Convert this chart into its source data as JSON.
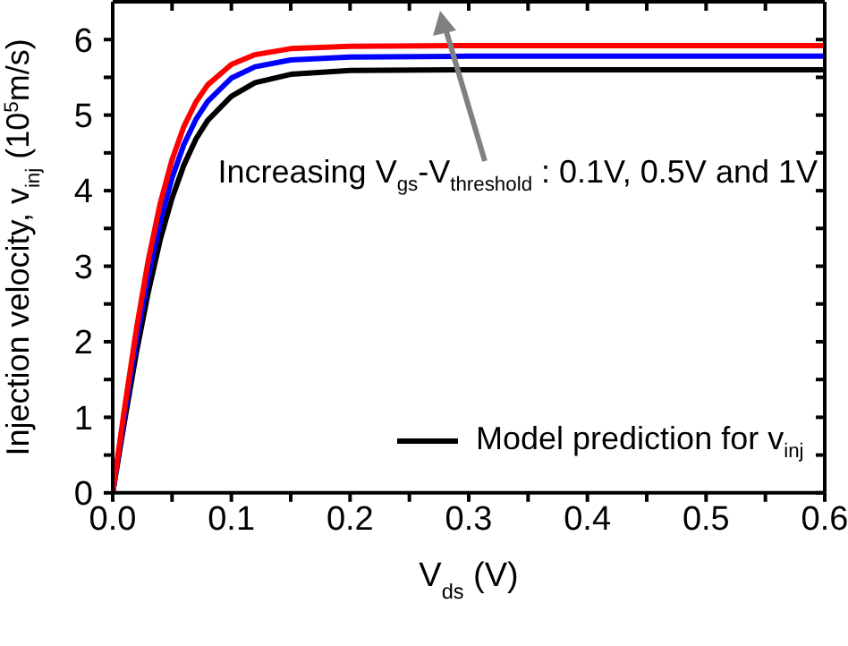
{
  "chart_data": {
    "type": "line",
    "xlabel": "V$_{ds}$ (V)",
    "ylabel": "Injection velocity, v$_{inj}$ (10$^{5}$m/s)",
    "x": [
      0,
      0.01,
      0.02,
      0.03,
      0.04,
      0.05,
      0.06,
      0.07,
      0.08,
      0.1,
      0.12,
      0.15,
      0.2,
      0.3,
      0.4,
      0.5,
      0.6
    ],
    "series": [
      {
        "name": "Model prediction for v$_{inj}$",
        "color": "#000000",
        "values": [
          0,
          0.95,
          1.86,
          2.66,
          3.35,
          3.9,
          4.34,
          4.68,
          4.93,
          5.25,
          5.43,
          5.54,
          5.59,
          5.6,
          5.6,
          5.6,
          5.6
        ]
      },
      {
        "color": "#0000ff",
        "values": [
          0,
          1.04,
          2.02,
          2.87,
          3.59,
          4.17,
          4.61,
          4.94,
          5.18,
          5.49,
          5.64,
          5.73,
          5.77,
          5.78,
          5.78,
          5.78,
          5.78
        ]
      },
      {
        "color": "#ff0000",
        "values": [
          0,
          1.12,
          2.17,
          3.08,
          3.83,
          4.41,
          4.85,
          5.17,
          5.4,
          5.67,
          5.8,
          5.88,
          5.91,
          5.92,
          5.92,
          5.92,
          5.92
        ]
      }
    ],
    "xlim": [
      0,
      0.6
    ],
    "ylim": [
      0,
      6.5
    ],
    "xticks": [
      {
        "value": 0,
        "label": "0.0"
      },
      {
        "value": 0.05,
        "label": null
      },
      {
        "value": 0.1,
        "label": "0.1"
      },
      {
        "value": 0.15,
        "label": null
      },
      {
        "value": 0.2,
        "label": "0.2"
      },
      {
        "value": 0.25,
        "label": null
      },
      {
        "value": 0.3,
        "label": "0.3"
      },
      {
        "value": 0.35,
        "label": null
      },
      {
        "value": 0.4,
        "label": "0.4"
      },
      {
        "value": 0.45,
        "label": null
      },
      {
        "value": 0.5,
        "label": "0.5"
      },
      {
        "value": 0.55,
        "label": null
      },
      {
        "value": 0.6,
        "label": "0.6"
      }
    ],
    "yticks": [
      0,
      {
        "value": 0.5,
        "label": null
      },
      1,
      {
        "value": 1.5,
        "label": null
      },
      2,
      {
        "value": 2.5,
        "label": null
      },
      3,
      {
        "value": 3.5,
        "label": null
      },
      4,
      {
        "value": 4.5,
        "label": null
      },
      5,
      {
        "value": 5.5,
        "label": null
      },
      6
    ],
    "annotations": [
      "Increasing V$_{gs}$-V$_{threshold}$ : 0.1V, 0.5V and 1V"
    ],
    "legend": "bottom right",
    "grid": false,
    "marker": "none",
    "line_style": "solid"
  }
}
